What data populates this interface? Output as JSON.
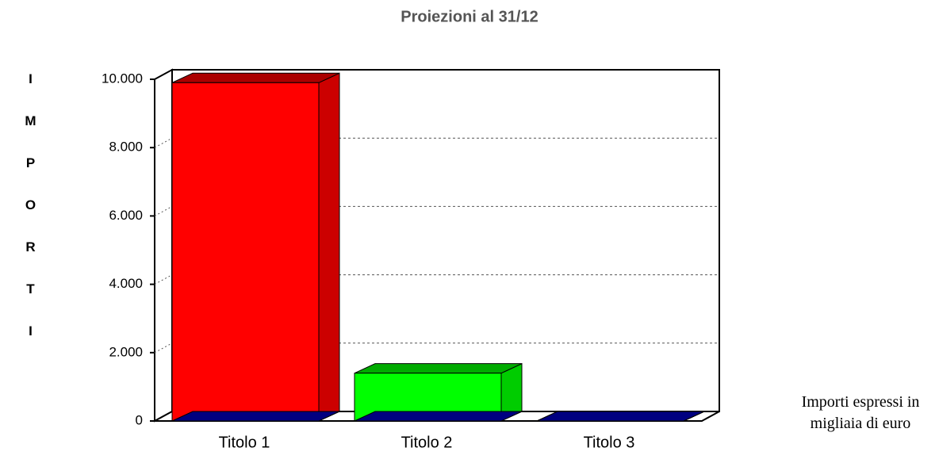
{
  "chart_data": {
    "type": "bar3d",
    "title": "Proiezioni al 31/12",
    "ylabel": "IMPORTI",
    "note": "Importi espressi in migliaia di euro",
    "categories": [
      "Titolo 1",
      "Titolo 2",
      "Titolo 3"
    ],
    "values": [
      9900,
      1400,
      0
    ],
    "colors": [
      "#ff0000",
      "#00ff00",
      "#0000cc"
    ],
    "ylim": [
      0,
      10000
    ],
    "yticks": [
      0,
      {
        "value": 2000,
        "label": "2.000"
      },
      {
        "value": 4000,
        "label": "4.000"
      },
      {
        "value": 6000,
        "label": "6.000"
      },
      {
        "value": 8000,
        "label": "8.000"
      },
      {
        "value": 10000,
        "label": "10.000"
      }
    ],
    "grid": true
  }
}
